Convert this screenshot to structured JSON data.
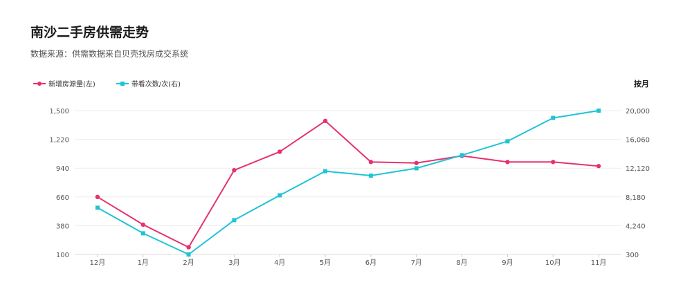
{
  "header": {
    "title": "南沙二手房供需走势",
    "subtitle": "数据来源：供需数据来自贝壳找房成交系统"
  },
  "legend": {
    "left_series": "新增房源量(左)",
    "right_series": "带看次数/次(右)",
    "period": "按月"
  },
  "colors": {
    "left_series": "#e5326f",
    "right_series": "#1ec4d6",
    "grid": "#eeeeee"
  },
  "chart_data": {
    "type": "line",
    "title": "南沙二手房供需走势",
    "categories": [
      "12月",
      "1月",
      "2月",
      "3月",
      "4月",
      "5月",
      "6月",
      "7月",
      "8月",
      "9月",
      "10月",
      "11月"
    ],
    "y_left": {
      "ticks": [
        "100",
        "380",
        "660",
        "940",
        "1,220",
        "1,500"
      ],
      "range": [
        100,
        1500
      ]
    },
    "y_right": {
      "ticks": [
        "300",
        "4,240",
        "8,180",
        "12,120",
        "16,060",
        "20,000"
      ],
      "range": [
        300,
        20000
      ]
    },
    "series": [
      {
        "name": "新增房源量(左)",
        "axis": "left",
        "marker": "circle",
        "values": [
          660,
          390,
          170,
          920,
          1100,
          1400,
          1000,
          990,
          1060,
          1000,
          1000,
          960
        ]
      },
      {
        "name": "带看次数/次(右)",
        "axis": "right",
        "marker": "square",
        "values": [
          6700,
          3200,
          300,
          5000,
          8400,
          11700,
          11100,
          12100,
          13900,
          15800,
          19000,
          20000
        ]
      }
    ],
    "grid": true,
    "legend_position": "top-left"
  }
}
